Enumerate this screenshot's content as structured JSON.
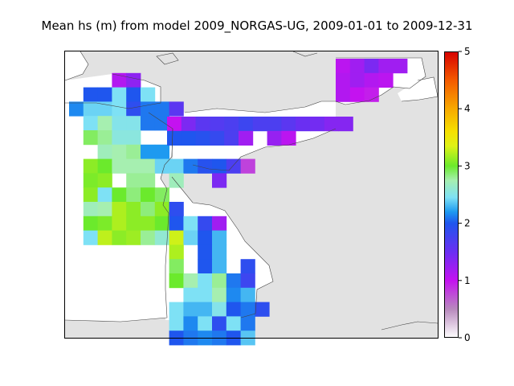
{
  "title": "Mean hs (m) from model 2009_NORGAS-UG, 2009-01-01 to 2009-12-31",
  "colors": {
    "land": "#e2e2e2",
    "sea": "#ffffff",
    "coast": "#444444",
    "frame": "#000000"
  },
  "colorbar": {
    "min": 0,
    "max": 5,
    "ticks": [
      "0",
      "1",
      "2",
      "3",
      "4",
      "5"
    ],
    "stops": [
      {
        "v": 0.0,
        "c": "#ffffff"
      },
      {
        "v": 0.5,
        "c": "#b889bd"
      },
      {
        "v": 1.0,
        "c": "#c412f0"
      },
      {
        "v": 1.5,
        "c": "#6a2ff2"
      },
      {
        "v": 2.0,
        "c": "#1f56ee"
      },
      {
        "v": 2.2,
        "c": "#1e9af0"
      },
      {
        "v": 2.45,
        "c": "#7ee1f5"
      },
      {
        "v": 2.75,
        "c": "#a6efb0"
      },
      {
        "v": 3.0,
        "c": "#6bea2c"
      },
      {
        "v": 3.35,
        "c": "#dff216"
      },
      {
        "v": 3.6,
        "c": "#f6e000"
      },
      {
        "v": 4.0,
        "c": "#f7a900"
      },
      {
        "v": 4.5,
        "c": "#f45a00"
      },
      {
        "v": 5.0,
        "c": "#d60000"
      }
    ]
  },
  "grid_values": [
    "..............................",
    "...###..................######",
    ".######.................######",
    "########................######",
    "########................######",
    "..........##........########..",
    "..........####################",
    "............................##",
    "...................##.........",
    "...........#.........#........",
    "...........###.......##.......",
    "...........###.......##.......",
    "...........#.#.......#........",
    "..........###.................",
    "..........###.................",
    "..........###.................",
    "..............................",
    ".............................."
  ],
  "cells": [
    [
      1,
      3,
      1.1
    ],
    [
      1,
      4,
      1.3
    ],
    [
      2,
      1,
      2.0
    ],
    [
      2,
      2,
      2.0
    ],
    [
      2,
      3,
      2.45
    ],
    [
      2,
      4,
      2.0
    ],
    [
      2,
      5,
      2.45
    ],
    [
      3,
      0,
      2.15
    ],
    [
      3,
      1,
      2.4
    ],
    [
      3,
      2,
      2.4
    ],
    [
      3,
      3,
      2.45
    ],
    [
      3,
      4,
      1.9
    ],
    [
      3,
      5,
      2.1
    ],
    [
      3,
      6,
      2.1
    ],
    [
      3,
      7,
      1.6
    ],
    [
      4,
      1,
      2.45
    ],
    [
      4,
      2,
      2.75
    ],
    [
      4,
      3,
      2.5
    ],
    [
      4,
      4,
      2.5
    ],
    [
      4,
      5,
      2.1
    ],
    [
      4,
      6,
      2.1
    ],
    [
      5,
      1,
      2.9
    ],
    [
      5,
      2,
      2.8
    ],
    [
      5,
      3,
      2.55
    ],
    [
      5,
      4,
      2.55
    ],
    [
      5,
      7,
      1.0
    ],
    [
      5,
      8,
      1.4
    ],
    [
      5,
      9,
      1.6
    ],
    [
      5,
      10,
      1.65
    ],
    [
      5,
      11,
      1.7
    ],
    [
      5,
      12,
      1.8
    ],
    [
      5,
      13,
      1.7
    ],
    [
      5,
      14,
      1.7
    ],
    [
      5,
      15,
      1.6
    ],
    [
      5,
      16,
      1.5
    ],
    [
      5,
      17,
      1.45
    ],
    [
      5,
      18,
      1.35
    ],
    [
      5,
      19,
      1.35
    ],
    [
      6,
      2,
      2.7
    ],
    [
      6,
      3,
      2.75
    ],
    [
      6,
      4,
      2.8
    ],
    [
      6,
      5,
      2.2
    ],
    [
      6,
      6,
      2.2
    ],
    [
      6,
      7,
      2.0
    ],
    [
      6,
      8,
      2.0
    ],
    [
      6,
      9,
      1.95
    ],
    [
      6,
      10,
      1.85
    ],
    [
      6,
      11,
      1.7
    ],
    [
      6,
      12,
      1.2
    ],
    [
      6,
      14,
      1.25
    ],
    [
      6,
      15,
      1.05
    ],
    [
      7,
      1,
      3.1
    ],
    [
      7,
      2,
      3.0
    ],
    [
      7,
      3,
      2.75
    ],
    [
      7,
      4,
      2.75
    ],
    [
      7,
      5,
      2.75
    ],
    [
      7,
      6,
      2.4
    ],
    [
      7,
      7,
      2.4
    ],
    [
      7,
      8,
      2.1
    ],
    [
      7,
      9,
      1.95
    ],
    [
      7,
      10,
      2.0
    ],
    [
      7,
      11,
      1.7
    ],
    [
      7,
      12,
      0.8
    ],
    [
      8,
      1,
      3.05
    ],
    [
      8,
      2,
      3.1
    ],
    [
      8,
      4,
      2.8
    ],
    [
      8,
      5,
      2.8
    ],
    [
      8,
      7,
      2.7
    ],
    [
      8,
      10,
      1.4
    ],
    [
      9,
      1,
      3.1
    ],
    [
      9,
      2,
      2.45
    ],
    [
      9,
      3,
      3.0
    ],
    [
      9,
      4,
      2.85
    ],
    [
      9,
      5,
      3.0
    ],
    [
      9,
      6,
      2.9
    ],
    [
      10,
      1,
      2.7
    ],
    [
      10,
      2,
      2.75
    ],
    [
      10,
      3,
      3.2
    ],
    [
      10,
      4,
      3.1
    ],
    [
      10,
      5,
      2.85
    ],
    [
      10,
      6,
      3.1
    ],
    [
      10,
      7,
      1.9
    ],
    [
      11,
      1,
      3.0
    ],
    [
      11,
      2,
      3.05
    ],
    [
      11,
      3,
      3.2
    ],
    [
      11,
      4,
      3.1
    ],
    [
      11,
      5,
      3.1
    ],
    [
      11,
      6,
      3.0
    ],
    [
      11,
      7,
      2.0
    ],
    [
      11,
      8,
      2.45
    ],
    [
      11,
      9,
      1.85
    ],
    [
      11,
      10,
      1.2
    ],
    [
      12,
      1,
      2.45
    ],
    [
      12,
      2,
      3.25
    ],
    [
      12,
      3,
      3.1
    ],
    [
      12,
      4,
      3.15
    ],
    [
      12,
      5,
      2.8
    ],
    [
      12,
      6,
      2.6
    ],
    [
      12,
      7,
      3.3
    ],
    [
      12,
      8,
      2.4
    ],
    [
      12,
      9,
      2.0
    ],
    [
      12,
      10,
      2.3
    ],
    [
      13,
      7,
      3.2
    ],
    [
      13,
      9,
      2.0
    ],
    [
      13,
      10,
      2.3
    ],
    [
      14,
      7,
      2.9
    ],
    [
      14,
      9,
      2.0
    ],
    [
      14,
      10,
      2.3
    ],
    [
      14,
      12,
      1.9
    ],
    [
      15,
      7,
      3.0
    ],
    [
      15,
      8,
      2.75
    ],
    [
      15,
      9,
      2.45
    ],
    [
      15,
      10,
      2.8
    ],
    [
      15,
      11,
      2.1
    ],
    [
      15,
      12,
      1.8
    ],
    [
      16,
      8,
      2.45
    ],
    [
      16,
      9,
      2.45
    ],
    [
      16,
      10,
      2.75
    ],
    [
      16,
      11,
      2.15
    ],
    [
      16,
      12,
      2.3
    ],
    [
      17,
      7,
      2.45
    ],
    [
      17,
      8,
      2.3
    ],
    [
      17,
      9,
      2.3
    ],
    [
      17,
      10,
      2.5
    ],
    [
      17,
      11,
      2.0
    ],
    [
      17,
      12,
      2.1
    ],
    [
      17,
      13,
      1.9
    ],
    [
      18,
      7,
      2.45
    ],
    [
      18,
      8,
      2.15
    ],
    [
      18,
      9,
      2.45
    ],
    [
      18,
      10,
      1.9
    ],
    [
      18,
      11,
      2.45
    ],
    [
      18,
      12,
      2.1
    ],
    [
      19,
      7,
      2.0
    ],
    [
      19,
      8,
      2.1
    ],
    [
      19,
      9,
      2.15
    ],
    [
      19,
      10,
      2.1
    ],
    [
      19,
      11,
      2.0
    ],
    [
      19,
      12,
      2.35
    ],
    [
      0,
      18,
      1.05
    ],
    [
      0,
      19,
      1.2
    ],
    [
      0,
      20,
      1.4
    ],
    [
      0,
      21,
      1.2
    ],
    [
      0,
      22,
      1.2
    ],
    [
      1,
      18,
      1.1
    ],
    [
      1,
      19,
      1.2
    ],
    [
      1,
      20,
      1.1
    ],
    [
      1,
      21,
      1.05
    ],
    [
      2,
      18,
      1.1
    ],
    [
      2,
      19,
      1.0
    ],
    [
      2,
      20,
      0.95
    ]
  ]
}
